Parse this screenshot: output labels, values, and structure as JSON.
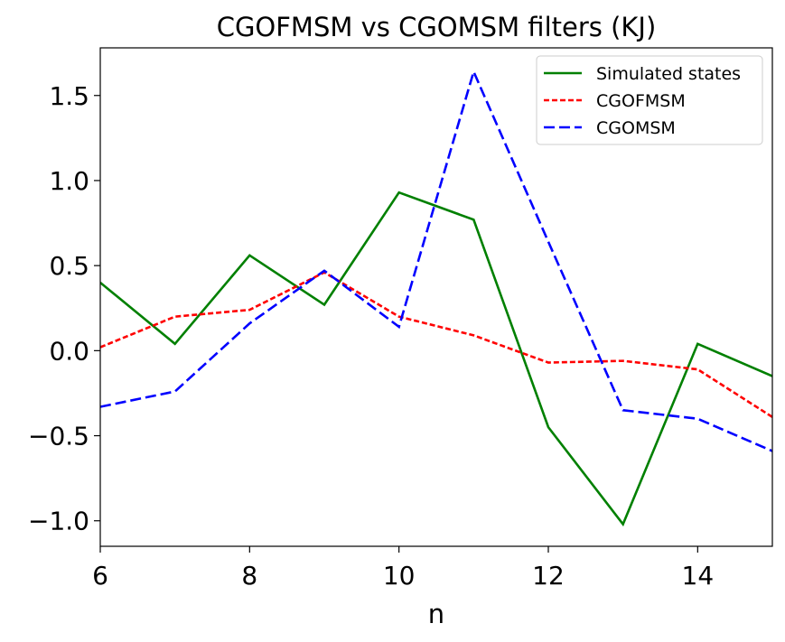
{
  "chart_data": {
    "type": "line",
    "title": "CGOFMSM vs CGOMSM filters (KJ)",
    "xlabel": "n",
    "ylabel": "",
    "xlim": [
      6,
      15
    ],
    "ylim": [
      -1.15,
      1.78
    ],
    "xticks": [
      6,
      8,
      10,
      12,
      14
    ],
    "xtick_labels": [
      "6",
      "8",
      "10",
      "12",
      "14"
    ],
    "yticks": [
      -1.0,
      -0.5,
      0.0,
      0.5,
      1.0,
      1.5
    ],
    "ytick_labels": [
      "−1.0",
      "−0.5",
      "0.0",
      "0.5",
      "1.0",
      "1.5"
    ],
    "grid": false,
    "legend_position": "top-right",
    "x": [
      6,
      7,
      8,
      9,
      10,
      11,
      12,
      13,
      14,
      15
    ],
    "series": [
      {
        "name": "Simulated states",
        "color": "#008000",
        "style": "solid",
        "values": [
          0.4,
          0.04,
          0.56,
          0.27,
          0.93,
          0.77,
          -0.45,
          -1.02,
          0.04,
          -0.15
        ]
      },
      {
        "name": "CGOFMSM",
        "color": "#ff0000",
        "style": "dotted-dash",
        "values": [
          0.02,
          0.2,
          0.24,
          0.46,
          0.2,
          0.09,
          -0.07,
          -0.06,
          -0.11,
          -0.39
        ]
      },
      {
        "name": "CGOMSM",
        "color": "#0000ff",
        "style": "dashed",
        "values": [
          -0.33,
          -0.24,
          0.16,
          0.47,
          0.14,
          1.64,
          0.64,
          -0.35,
          -0.4,
          -0.59
        ]
      }
    ]
  }
}
